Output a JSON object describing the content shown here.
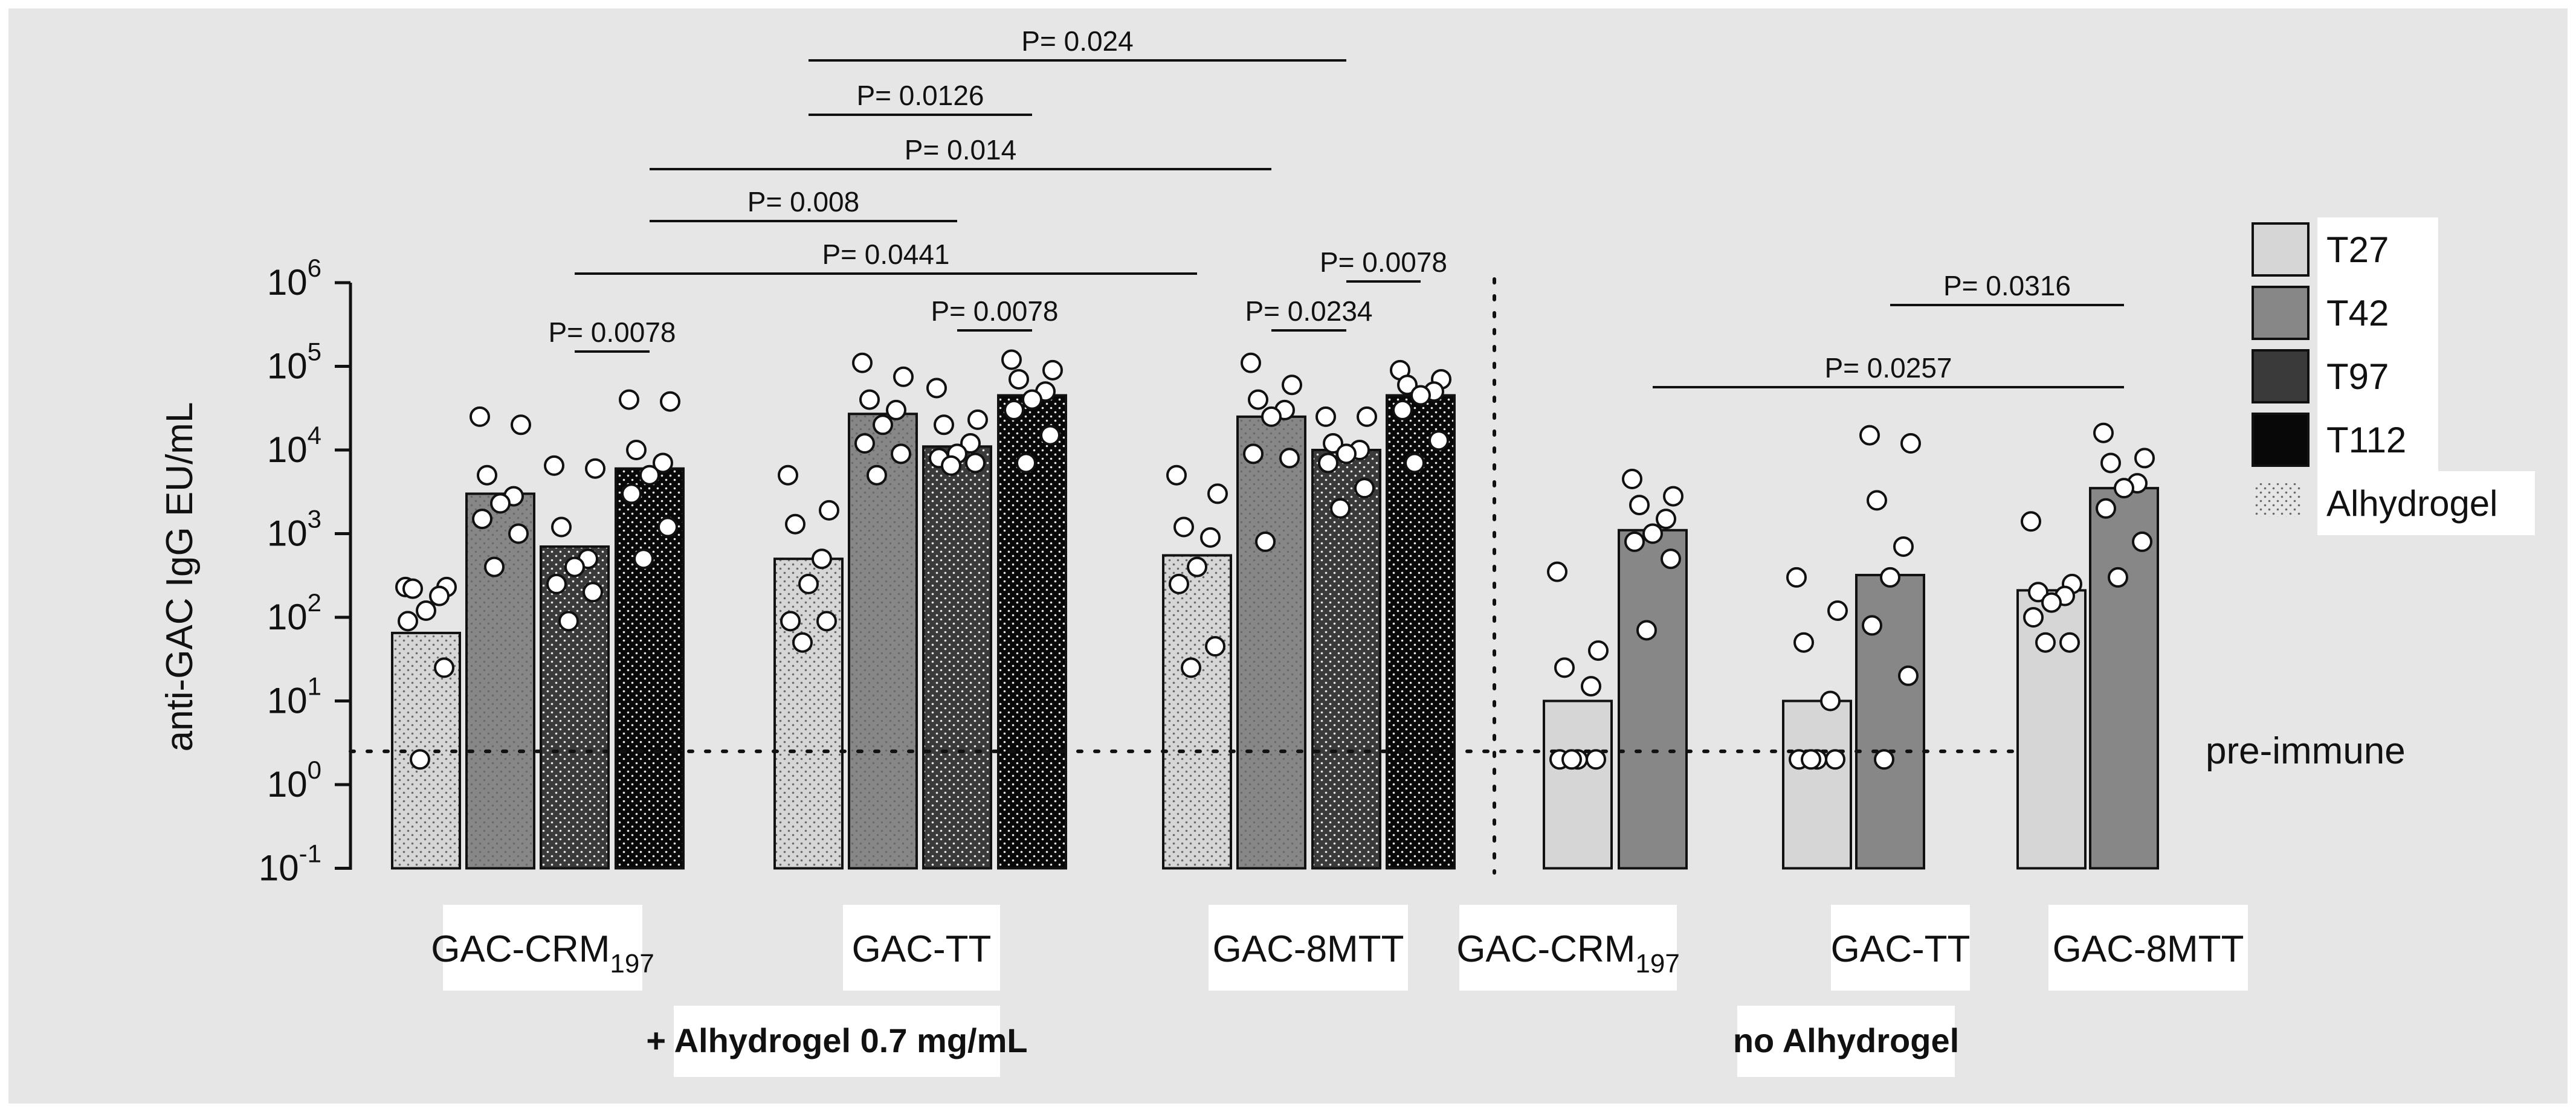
{
  "chart_data": {
    "type": "bar",
    "yscale": "log",
    "ylabel": "anti-GAC IgG EU/mL",
    "ylim": [
      0.1,
      1000000
    ],
    "yticks": [
      {
        "value": 1000000,
        "base": "10",
        "exp": "6"
      },
      {
        "value": 100000,
        "base": "10",
        "exp": "5"
      },
      {
        "value": 10000,
        "base": "10",
        "exp": "4"
      },
      {
        "value": 1000,
        "base": "10",
        "exp": "3"
      },
      {
        "value": 100,
        "base": "10",
        "exp": "2"
      },
      {
        "value": 10,
        "base": "10",
        "exp": "1"
      },
      {
        "value": 1,
        "base": "10",
        "exp": "0"
      },
      {
        "value": 0.1,
        "base": "10",
        "exp": "-1"
      }
    ],
    "reference_line": {
      "label": "pre-immune",
      "value": 2.5
    },
    "legend": [
      {
        "name": "T27",
        "color": "#d6d6d6"
      },
      {
        "name": "T42",
        "color": "#878787"
      },
      {
        "name": "T97",
        "color": "#3a3a3a"
      },
      {
        "name": "T112",
        "color": "#080808"
      },
      {
        "name": "Alhydrogel",
        "pattern": "dots"
      }
    ],
    "groups": [
      {
        "label": "GAC-CRM",
        "sub": "197",
        "section": "alhydrogel"
      },
      {
        "label": "GAC-TT",
        "sub": "",
        "section": "alhydrogel"
      },
      {
        "label": "GAC-8MTT",
        "sub": "",
        "section": "alhydrogel"
      },
      {
        "label": "GAC-CRM",
        "sub": "197",
        "section": "none"
      },
      {
        "label": "GAC-TT",
        "sub": "",
        "section": "none"
      },
      {
        "label": "GAC-8MTT",
        "sub": "",
        "section": "none"
      }
    ],
    "sections": [
      {
        "id": "alhydrogel",
        "label": "+ Alhydrogel 0.7 mg/mL"
      },
      {
        "id": "none",
        "label": "no Alhydrogel"
      }
    ],
    "bars": [
      {
        "group": 0,
        "series": "T27",
        "dotted": true,
        "value": 65,
        "points": [
          230,
          230,
          220,
          180,
          120,
          90,
          25,
          2
        ]
      },
      {
        "group": 0,
        "series": "T42",
        "dotted": true,
        "value": 3000,
        "points": [
          25000,
          20000,
          5000,
          2800,
          2300,
          1500,
          1000,
          400
        ]
      },
      {
        "group": 0,
        "series": "T97",
        "dotted": true,
        "value": 700,
        "points": [
          6500,
          6000,
          1200,
          500,
          400,
          250,
          200,
          90
        ]
      },
      {
        "group": 0,
        "series": "T112",
        "dotted": true,
        "value": 6000,
        "points": [
          40000,
          38000,
          10000,
          7000,
          5000,
          3000,
          1200,
          500
        ]
      },
      {
        "group": 1,
        "series": "T27",
        "dotted": true,
        "value": 500,
        "points": [
          5000,
          1900,
          1300,
          500,
          250,
          90,
          90,
          50
        ]
      },
      {
        "group": 1,
        "series": "T42",
        "dotted": true,
        "value": 27000,
        "points": [
          110000,
          75000,
          40000,
          30000,
          20000,
          12000,
          9000,
          5000
        ]
      },
      {
        "group": 1,
        "series": "T97",
        "dotted": true,
        "value": 11000,
        "points": [
          55000,
          23000,
          20000,
          12000,
          9000,
          8000,
          7000,
          6500
        ]
      },
      {
        "group": 1,
        "series": "T112",
        "dotted": true,
        "value": 45000,
        "points": [
          120000,
          90000,
          70000,
          50000,
          40000,
          30000,
          15000,
          7000
        ]
      },
      {
        "group": 2,
        "series": "T27",
        "dotted": true,
        "value": 550,
        "points": [
          5000,
          3000,
          1200,
          900,
          400,
          250,
          45,
          25
        ]
      },
      {
        "group": 2,
        "series": "T42",
        "dotted": true,
        "value": 25000,
        "points": [
          110000,
          60000,
          40000,
          30000,
          25000,
          9000,
          8000,
          800
        ]
      },
      {
        "group": 2,
        "series": "T97",
        "dotted": true,
        "value": 10000,
        "points": [
          25000,
          25000,
          12000,
          10000,
          9000,
          7000,
          3500,
          2000
        ]
      },
      {
        "group": 2,
        "series": "T112",
        "dotted": true,
        "value": 45000,
        "points": [
          90000,
          70000,
          60000,
          50000,
          45000,
          30000,
          13000,
          7000
        ]
      },
      {
        "group": 3,
        "series": "T27",
        "dotted": false,
        "value": 10,
        "points": [
          350,
          40,
          25,
          15,
          2,
          2,
          2,
          2
        ]
      },
      {
        "group": 3,
        "series": "T42",
        "dotted": false,
        "value": 1100,
        "points": [
          4500,
          2800,
          2200,
          1500,
          1000,
          800,
          500,
          70
        ]
      },
      {
        "group": 4,
        "series": "T27",
        "dotted": false,
        "value": 10,
        "points": [
          300,
          120,
          50,
          10,
          2,
          2,
          2,
          2
        ]
      },
      {
        "group": 4,
        "series": "T42",
        "dotted": false,
        "value": 320,
        "points": [
          15000,
          12000,
          2500,
          700,
          300,
          80,
          20,
          2
        ]
      },
      {
        "group": 5,
        "series": "T27",
        "dotted": false,
        "value": 210,
        "points": [
          1400,
          250,
          200,
          180,
          150,
          100,
          50,
          50
        ]
      },
      {
        "group": 5,
        "series": "T42",
        "dotted": false,
        "value": 3500,
        "points": [
          16000,
          8000,
          7000,
          4000,
          3500,
          2000,
          800,
          300
        ]
      }
    ],
    "comparisons": [
      {
        "label": "P= 0.024",
        "from": 4,
        "to": 10
      },
      {
        "label": "P= 0.0126",
        "from": 4,
        "to": 7
      },
      {
        "label": "P= 0.014",
        "from": 3,
        "to": 9
      },
      {
        "label": "P= 0.008",
        "from": 3,
        "to": 6
      },
      {
        "label": "P= 0.0441",
        "from": 2,
        "to": 8
      },
      {
        "label": "P= 0.0078",
        "from": 10,
        "to": 11
      },
      {
        "label": "P= 0.0078",
        "from": 6,
        "to": 7
      },
      {
        "label": "P= 0.0234",
        "from": 9,
        "to": 10
      },
      {
        "label": "P= 0.0078",
        "from": 2,
        "to": 3
      },
      {
        "label": "P= 0.0316",
        "from": 15,
        "to": 17
      },
      {
        "label": "P= 0.0257",
        "from": 13,
        "to": 17
      }
    ]
  }
}
